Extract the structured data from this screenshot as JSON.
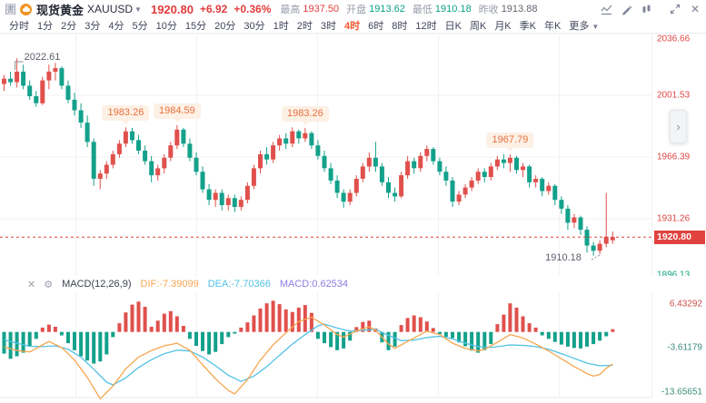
{
  "header": {
    "window_icon": "圕",
    "instrument_name": "现货黄金",
    "symbol": "XAUUSD",
    "dropdown_caret": "▼",
    "last_price": "1920.80",
    "change": "+6.92",
    "change_pct": "+0.36%",
    "stats": [
      {
        "label": "最高",
        "value": "1937.50",
        "color": "red"
      },
      {
        "label": "开盘",
        "value": "1913.62",
        "color": "green"
      },
      {
        "label": "最低",
        "value": "1910.18",
        "color": "green"
      },
      {
        "label": "昨收",
        "value": "1913.88",
        "color": "gray"
      }
    ],
    "toolbar_icons": [
      "chart-type-icon",
      "draw-tool-icon",
      "compare-icon",
      "fullscreen-icon",
      "close-icon"
    ]
  },
  "timeframe_bar": {
    "items": [
      "分时",
      "1分",
      "2分",
      "3分",
      "4分",
      "5分",
      "10分",
      "15分",
      "20分",
      "30分",
      "1时",
      "2时",
      "3时",
      "4时",
      "6时",
      "8时",
      "12时",
      "日K",
      "周K",
      "月K",
      "季K",
      "年K"
    ],
    "active": "4时",
    "more_label": "更多",
    "more_caret": "▼"
  },
  "macd_panel": {
    "close_icon": "✕",
    "settings_icon": "⚙",
    "name": "MACD(12,26,9)",
    "dif_label": "DIF:-7.39099",
    "dea_label": "DEA:-7.70366",
    "macd_label": "MACD:0.62534"
  },
  "chart_data": {
    "type": "candlestick",
    "symbol": "XAUUSD",
    "timeframe": "4时",
    "price_axis": {
      "labels": [
        {
          "text": "2036.66",
          "color": "red"
        },
        {
          "text": "2001.53",
          "color": "red"
        },
        {
          "text": "1966.39",
          "color": "red"
        },
        {
          "text": "1931.26",
          "color": "red"
        },
        {
          "text": "1896.13",
          "color": "green"
        }
      ],
      "current": {
        "text": "1920.80",
        "value": 1920.8
      }
    },
    "annotations": {
      "high_label": {
        "text": "2022.61",
        "candle": 2
      },
      "badges": [
        {
          "text": "1983.26",
          "candle": 19
        },
        {
          "text": "1984.59",
          "candle": 27
        },
        {
          "text": "1983.26",
          "candle": 47
        },
        {
          "text": "1967.79",
          "candle": 79
        }
      ],
      "low_label": {
        "text": "1910.18",
        "candle": 92
      }
    },
    "candles": [
      [
        2008,
        2013,
        2004,
        2011
      ],
      [
        2011,
        2015,
        2007,
        2009
      ],
      [
        2009,
        2022.6,
        2006,
        2015
      ],
      [
        2015,
        2019,
        2005,
        2007
      ],
      [
        2007,
        2010,
        1999,
        2001
      ],
      [
        2001,
        2004,
        1995,
        1997
      ],
      [
        1997,
        2012,
        1996,
        2010
      ],
      [
        2010,
        2019,
        2005,
        2015
      ],
      [
        2015,
        2020,
        2010,
        2017
      ],
      [
        2017,
        2018,
        2005,
        2007
      ],
      [
        2007,
        2010,
        1997,
        1999
      ],
      [
        1999,
        2003,
        1990,
        1993
      ],
      [
        1993,
        1997,
        1983,
        1986
      ],
      [
        1986,
        1990,
        1972,
        1975
      ],
      [
        1975,
        1977,
        1950,
        1954
      ],
      [
        1954,
        1959,
        1948,
        1957
      ],
      [
        1957,
        1964,
        1954,
        1962
      ],
      [
        1962,
        1970,
        1960,
        1968
      ],
      [
        1968,
        1976,
        1966,
        1974
      ],
      [
        1974,
        1983.3,
        1972,
        1981
      ],
      [
        1981,
        1983,
        1974,
        1976
      ],
      [
        1976,
        1979,
        1968,
        1970
      ],
      [
        1970,
        1973,
        1962,
        1964
      ],
      [
        1964,
        1967,
        1952,
        1956
      ],
      [
        1956,
        1962,
        1953,
        1960
      ],
      [
        1960,
        1968,
        1957,
        1966
      ],
      [
        1966,
        1975,
        1964,
        1973
      ],
      [
        1973,
        1984.6,
        1971,
        1982
      ],
      [
        1982,
        1983,
        1972,
        1974
      ],
      [
        1974,
        1977,
        1964,
        1966
      ],
      [
        1966,
        1969,
        1956,
        1958
      ],
      [
        1958,
        1961,
        1946,
        1948
      ],
      [
        1948,
        1951,
        1939,
        1942
      ],
      [
        1942,
        1948,
        1938,
        1946
      ],
      [
        1946,
        1948,
        1936,
        1939
      ],
      [
        1939,
        1945,
        1936,
        1943
      ],
      [
        1943,
        1945,
        1935,
        1938
      ],
      [
        1938,
        1944,
        1936,
        1942
      ],
      [
        1942,
        1952,
        1940,
        1950
      ],
      [
        1950,
        1962,
        1948,
        1960
      ],
      [
        1960,
        1970,
        1957,
        1968
      ],
      [
        1968,
        1972,
        1962,
        1965
      ],
      [
        1965,
        1975,
        1963,
        1973
      ],
      [
        1973,
        1979,
        1970,
        1977
      ],
      [
        1977,
        1980,
        1971,
        1974
      ],
      [
        1974,
        1983.3,
        1972,
        1981
      ],
      [
        1981,
        1982,
        1974,
        1977
      ],
      [
        1977,
        1983,
        1975,
        1980
      ],
      [
        1980,
        1981,
        1971,
        1973
      ],
      [
        1973,
        1976,
        1965,
        1967
      ],
      [
        1967,
        1970,
        1958,
        1960
      ],
      [
        1960,
        1963,
        1951,
        1953
      ],
      [
        1953,
        1956,
        1943,
        1946
      ],
      [
        1946,
        1948,
        1937.5,
        1941
      ],
      [
        1941,
        1948,
        1939,
        1946
      ],
      [
        1946,
        1956,
        1944,
        1954
      ],
      [
        1954,
        1963,
        1952,
        1961
      ],
      [
        1961,
        1969,
        1958,
        1966
      ],
      [
        1966,
        1975,
        1958,
        1961
      ],
      [
        1961,
        1963,
        1950,
        1952
      ],
      [
        1952,
        1955,
        1943,
        1946
      ],
      [
        1946,
        1949,
        1941,
        1944
      ],
      [
        1944,
        1958,
        1943,
        1956
      ],
      [
        1956,
        1967,
        1954,
        1964
      ],
      [
        1964,
        1966,
        1957,
        1960
      ],
      [
        1960,
        1969,
        1958,
        1967
      ],
      [
        1967,
        1973,
        1964,
        1971
      ],
      [
        1971,
        1972,
        1962,
        1964
      ],
      [
        1964,
        1966,
        1956,
        1958
      ],
      [
        1958,
        1961,
        1950,
        1953
      ],
      [
        1953,
        1955,
        1938,
        1941
      ],
      [
        1941,
        1947,
        1939,
        1945
      ],
      [
        1945,
        1951,
        1943,
        1949
      ],
      [
        1949,
        1955,
        1947,
        1953
      ],
      [
        1953,
        1960,
        1951,
        1958
      ],
      [
        1958,
        1960,
        1952,
        1955
      ],
      [
        1955,
        1963,
        1953,
        1961
      ],
      [
        1961,
        1967,
        1959,
        1965
      ],
      [
        1965,
        1968,
        1960,
        1963
      ],
      [
        1963,
        1967.8,
        1958,
        1966
      ],
      [
        1966,
        1967,
        1957,
        1959
      ],
      [
        1959,
        1963,
        1955,
        1961
      ],
      [
        1961,
        1962,
        1949,
        1952
      ],
      [
        1952,
        1956,
        1949,
        1954
      ],
      [
        1954,
        1955,
        1944,
        1947
      ],
      [
        1947,
        1952,
        1945,
        1950
      ],
      [
        1950,
        1951,
        1939,
        1942
      ],
      [
        1942,
        1944,
        1934,
        1937
      ],
      [
        1937,
        1939,
        1925,
        1929
      ],
      [
        1929,
        1934,
        1926,
        1932
      ],
      [
        1932,
        1933,
        1922,
        1925
      ],
      [
        1925,
        1927,
        1912,
        1916
      ],
      [
        1916,
        1918,
        1910.2,
        1913
      ],
      [
        1913,
        1919,
        1911,
        1917
      ],
      [
        1917,
        1946,
        1915,
        1921
      ],
      [
        1919,
        1924,
        1917,
        1920.8
      ]
    ],
    "macd": {
      "params": {
        "fast": 12,
        "slow": 26,
        "signal": 9
      },
      "axis_labels": [
        {
          "text": "6.43292",
          "color": "red"
        },
        {
          "text": "-3.61179",
          "color": "green"
        },
        {
          "text": "-13.65651",
          "color": "green"
        }
      ],
      "hist": [
        -5.0,
        -6.2,
        -5.6,
        -4.8,
        -3.4,
        -1.6,
        1.0,
        1.7,
        1.2,
        -0.8,
        -2.6,
        -4.2,
        -5.6,
        -6.6,
        -7.3,
        -6.8,
        -5.2,
        -1.2,
        2.0,
        4.5,
        6.3,
        7.0,
        5.8,
        1.2,
        2.6,
        4.2,
        4.8,
        3.6,
        1.4,
        -1.6,
        -3.2,
        -4.4,
        -5.2,
        -4.6,
        -2.8,
        -1.2,
        -0.4,
        1.0,
        2.2,
        3.8,
        5.4,
        6.6,
        7.2,
        6.4,
        5.2,
        4.6,
        5.6,
        6.2,
        4.4,
        -1.6,
        -2.6,
        -3.5,
        -4.2,
        -3.8,
        -2.0,
        1.1,
        2.3,
        2.6,
        0.8,
        -2.4,
        -4.2,
        -3.4,
        1.6,
        3.2,
        3.8,
        3.4,
        2.4,
        0.9,
        -0.5,
        -1.1,
        -1.4,
        -2.4,
        -3.3,
        -4.3,
        -4.8,
        -4.2,
        -2.8,
        1.8,
        4.0,
        6.6,
        5.6,
        3.6,
        2.0,
        1.0,
        -0.8,
        -1.6,
        -2.3,
        -2.9,
        -3.4,
        -3.7,
        -3.8,
        -3.4,
        -2.8,
        -2.0,
        -1.0,
        0.63
      ],
      "dif_points": [
        [
          0,
          -3.5
        ],
        [
          2,
          -4.3
        ],
        [
          4,
          -4.6
        ],
        [
          6,
          -3.0
        ],
        [
          7,
          -2.2
        ],
        [
          9,
          -3.6
        ],
        [
          11,
          -6.5
        ],
        [
          13,
          -10.5
        ],
        [
          15,
          -15.4
        ],
        [
          17,
          -12.5
        ],
        [
          19,
          -8.5
        ],
        [
          21,
          -5.8
        ],
        [
          23,
          -4.3
        ],
        [
          25,
          -3.2
        ],
        [
          27,
          -2.6
        ],
        [
          29,
          -4.2
        ],
        [
          31,
          -7.6
        ],
        [
          33,
          -10.8
        ],
        [
          35,
          -13.5
        ],
        [
          36,
          -14.3
        ],
        [
          38,
          -11.0
        ],
        [
          40,
          -6.5
        ],
        [
          42,
          -3.0
        ],
        [
          44,
          -0.2
        ],
        [
          46,
          2.4
        ],
        [
          48,
          3.4
        ],
        [
          50,
          1.6
        ],
        [
          52,
          -0.6
        ],
        [
          53,
          -1.2
        ],
        [
          55,
          0.2
        ],
        [
          57,
          1.2
        ],
        [
          58,
          0.4
        ],
        [
          60,
          -2.8
        ],
        [
          61,
          -3.8
        ],
        [
          63,
          -2.2
        ],
        [
          65,
          -0.6
        ],
        [
          66,
          0.2
        ],
        [
          68,
          -0.6
        ],
        [
          70,
          -2.6
        ],
        [
          72,
          -3.8
        ],
        [
          74,
          -4.4
        ],
        [
          75,
          -4.0
        ],
        [
          77,
          -2.4
        ],
        [
          79,
          -0.6
        ],
        [
          81,
          -1.4
        ],
        [
          83,
          -2.8
        ],
        [
          85,
          -4.4
        ],
        [
          87,
          -6.2
        ],
        [
          89,
          -8.0
        ],
        [
          91,
          -9.6
        ],
        [
          92,
          -10.2
        ],
        [
          93,
          -9.8
        ],
        [
          94,
          -8.4
        ],
        [
          95,
          -7.39
        ]
      ],
      "dea_points": [
        [
          0,
          -1.8
        ],
        [
          2,
          -2.6
        ],
        [
          4,
          -3.3
        ],
        [
          6,
          -3.4
        ],
        [
          8,
          -3.2
        ],
        [
          10,
          -4.0
        ],
        [
          12,
          -5.8
        ],
        [
          14,
          -8.6
        ],
        [
          16,
          -11.6
        ],
        [
          17,
          -12.2
        ],
        [
          19,
          -10.6
        ],
        [
          21,
          -8.2
        ],
        [
          23,
          -6.4
        ],
        [
          25,
          -5.0
        ],
        [
          27,
          -4.2
        ],
        [
          29,
          -4.4
        ],
        [
          31,
          -5.8
        ],
        [
          33,
          -7.8
        ],
        [
          35,
          -10.0
        ],
        [
          37,
          -11.4
        ],
        [
          39,
          -10.2
        ],
        [
          41,
          -8.0
        ],
        [
          43,
          -5.4
        ],
        [
          45,
          -2.8
        ],
        [
          47,
          -0.6
        ],
        [
          49,
          1.4
        ],
        [
          50,
          1.8
        ],
        [
          52,
          0.9
        ],
        [
          54,
          0.2
        ],
        [
          56,
          0.4
        ],
        [
          58,
          0.6
        ],
        [
          60,
          -0.8
        ],
        [
          62,
          -2.0
        ],
        [
          64,
          -1.9
        ],
        [
          66,
          -1.3
        ],
        [
          68,
          -1.0
        ],
        [
          70,
          -1.6
        ],
        [
          72,
          -2.6
        ],
        [
          74,
          -3.4
        ],
        [
          76,
          -3.6
        ],
        [
          78,
          -3.2
        ],
        [
          79,
          -3.0
        ],
        [
          81,
          -3.1
        ],
        [
          83,
          -3.4
        ],
        [
          85,
          -4.0
        ],
        [
          87,
          -5.0
        ],
        [
          89,
          -6.1
        ],
        [
          91,
          -7.2
        ],
        [
          93,
          -7.8
        ],
        [
          95,
          -7.7
        ]
      ]
    },
    "colors": {
      "up": "#e0504c",
      "down": "#13a18b",
      "dif_line": "#f6a64f",
      "dea_line": "#52c2e4",
      "current_price_line": "#e0433f",
      "grid": "#f1f2f6"
    }
  }
}
